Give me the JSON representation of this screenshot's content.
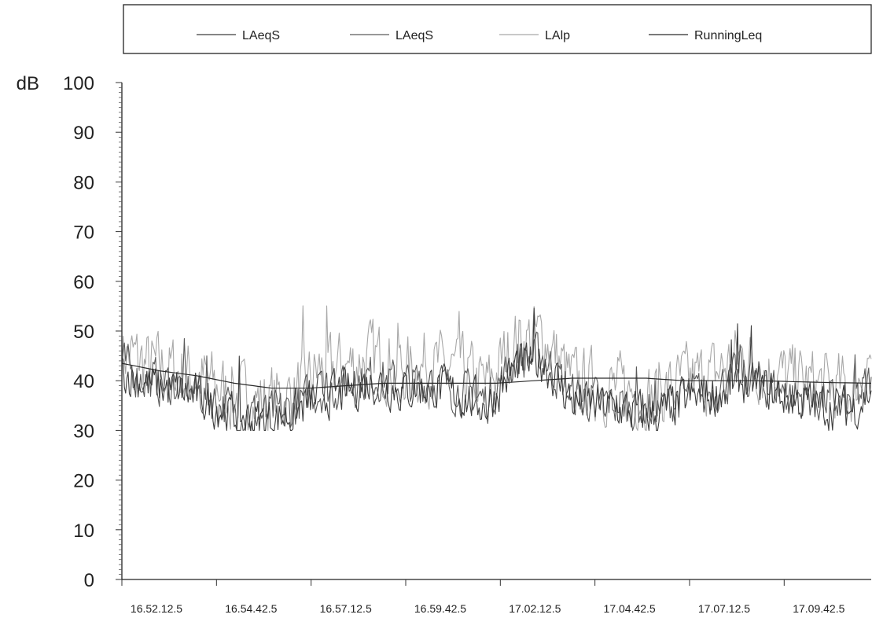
{
  "chart_data": {
    "type": "line",
    "title": "",
    "xlabel": "",
    "ylabel": "dB",
    "ylim": [
      0,
      100
    ],
    "ytick_labels": [
      "0",
      "10",
      "20",
      "30",
      "40",
      "50",
      "60",
      "70",
      "80",
      "90",
      "100"
    ],
    "xlim": [
      "16.51.00",
      "17.11.00"
    ],
    "xtick_labels": [
      "16.52.12.5",
      "16.54.42.5",
      "16.57.12.5",
      "16.59.42.5",
      "17.02.12.5",
      "17.04.42.5",
      "17.07.12.5",
      "17.09.42.5"
    ],
    "grid": false,
    "legend_position": "top",
    "series": [
      {
        "name": "LAeqS",
        "color": "#3c3c3c",
        "x": [
          "16.51.00",
          "16.51.45",
          "16.52.30",
          "16.53.15",
          "16.54.00",
          "16.54.45",
          "16.55.30",
          "16.56.15",
          "16.57.00",
          "16.57.45",
          "16.58.30",
          "16.59.15",
          "17.00.00",
          "17.00.45",
          "17.01.30",
          "17.02.15",
          "17.03.00",
          "17.03.45",
          "17.04.30",
          "17.05.15",
          "17.06.00",
          "17.06.45",
          "17.07.30",
          "17.08.15",
          "17.09.00",
          "17.09.45",
          "17.10.30",
          "17.11.00"
        ],
        "values": [
          42,
          39,
          38,
          36,
          33,
          32,
          33,
          37,
          38,
          40,
          38,
          39,
          37,
          35,
          43,
          44,
          36,
          35,
          34,
          33,
          36,
          37,
          40,
          38,
          36,
          35,
          34,
          38
        ]
      },
      {
        "name": "LAeqS",
        "color": "#5a5a5a",
        "x": [
          "16.51.00",
          "16.51.45",
          "16.52.30",
          "16.53.15",
          "16.54.00",
          "16.54.45",
          "16.55.30",
          "16.56.15",
          "16.57.00",
          "16.57.45",
          "16.58.30",
          "16.59.15",
          "17.00.00",
          "17.00.45",
          "17.01.30",
          "17.02.15",
          "17.03.00",
          "17.03.45",
          "17.04.30",
          "17.05.15",
          "17.06.00",
          "17.06.45",
          "17.07.30",
          "17.08.15",
          "17.09.00",
          "17.09.45",
          "17.10.30",
          "17.11.00"
        ],
        "values": [
          43,
          40,
          39,
          37,
          34,
          33,
          34,
          38,
          39,
          41,
          39,
          40,
          38,
          36,
          44,
          45,
          37,
          36,
          35,
          34,
          37,
          38,
          41,
          39,
          37,
          36,
          35,
          40
        ]
      },
      {
        "name": "LAlp",
        "color": "#a8a8a8",
        "x": [
          "16.51.00",
          "16.51.45",
          "16.52.30",
          "16.53.15",
          "16.54.00",
          "16.54.45",
          "16.55.30",
          "16.56.15",
          "16.57.00",
          "16.57.45",
          "16.58.30",
          "16.59.15",
          "17.00.00",
          "17.00.45",
          "17.01.30",
          "17.02.15",
          "17.03.00",
          "17.03.45",
          "17.04.30",
          "17.05.15",
          "17.06.00",
          "17.06.45",
          "17.07.30",
          "17.08.15",
          "17.09.00",
          "17.09.45",
          "17.10.30",
          "17.11.00"
        ],
        "values": [
          46,
          43,
          42,
          40,
          37,
          36,
          37,
          42,
          43,
          45,
          42,
          43,
          42,
          39,
          48,
          49,
          40,
          39,
          38,
          37,
          40,
          41,
          45,
          42,
          40,
          39,
          38,
          45
        ]
      },
      {
        "name": "RunningLeq",
        "color": "#2a2a2a",
        "x": [
          "16.51.00",
          "16.52.00",
          "16.53.00",
          "16.54.00",
          "16.55.00",
          "16.56.00",
          "16.57.00",
          "16.58.00",
          "16.59.00",
          "17.00.00",
          "17.01.00",
          "17.02.00",
          "17.03.00",
          "17.04.00",
          "17.05.00",
          "17.06.00",
          "17.07.00",
          "17.08.00",
          "17.09.00",
          "17.10.00",
          "17.11.00"
        ],
        "values": [
          43.5,
          42,
          41,
          39.5,
          38.5,
          38.5,
          39,
          39.5,
          39.5,
          39.5,
          39.5,
          40,
          40.5,
          40.5,
          40.5,
          40,
          40,
          40,
          39.8,
          39.6,
          39.5
        ]
      }
    ]
  }
}
